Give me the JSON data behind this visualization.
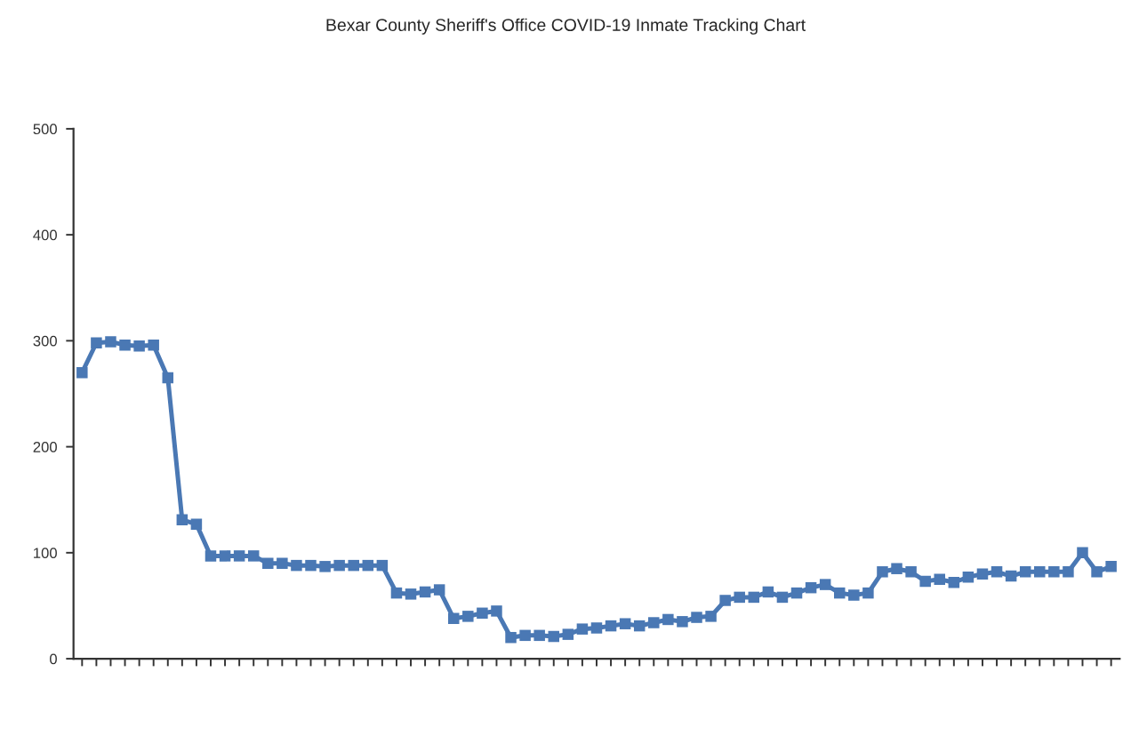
{
  "chart_data": {
    "type": "line",
    "title": "Bexar County Sheriff's Office COVID-19 Inmate Tracking Chart",
    "categories": [
      null,
      null,
      null,
      null,
      null,
      null,
      null,
      null,
      null,
      null,
      null,
      null,
      null,
      null,
      null,
      null,
      null,
      null,
      null,
      null,
      null,
      null,
      null,
      null,
      null,
      null,
      null,
      null,
      null,
      null,
      null,
      null,
      null,
      null,
      null,
      null,
      null,
      null,
      null,
      null,
      null,
      null,
      null,
      null,
      null,
      null,
      null,
      null,
      null,
      null,
      null,
      null,
      null,
      null,
      null,
      null,
      null,
      null,
      null,
      null,
      null,
      null,
      null,
      null,
      null,
      null,
      null,
      null,
      null,
      null,
      null,
      null,
      null
    ],
    "series": [
      {
        "color": "#4a78b4",
        "values": [
          270,
          298,
          299,
          296,
          295,
          296,
          265,
          131,
          127,
          97,
          97,
          97,
          97,
          90,
          90,
          88,
          88,
          87,
          88,
          88,
          88,
          88,
          62,
          61,
          63,
          65,
          38,
          40,
          43,
          45,
          20,
          22,
          22,
          21,
          23,
          28,
          29,
          31,
          33,
          31,
          34,
          37,
          35,
          39,
          40,
          55,
          58,
          58,
          63,
          58,
          62,
          67,
          70,
          62,
          60,
          62,
          82,
          85,
          82,
          73,
          75,
          72,
          77,
          80,
          82,
          78,
          82,
          82,
          82,
          82,
          100,
          82,
          87
        ]
      }
    ],
    "ylim": [
      0,
      500
    ],
    "yticks": [
      0,
      100,
      200,
      300,
      400,
      500
    ],
    "tick_labels": "y",
    "grid": false,
    "legend": false,
    "marker": "square",
    "line_style": "solid"
  }
}
